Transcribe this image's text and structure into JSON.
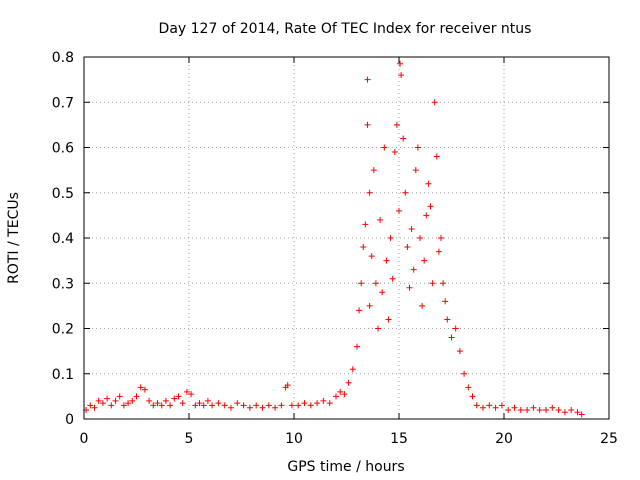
{
  "chart_data": {
    "type": "scatter",
    "title": "Day 127 of 2014, Rate Of TEC Index for receiver ntus",
    "xlabel": "GPS time / hours",
    "ylabel": "ROTI / TECUs",
    "xlim": [
      0,
      25
    ],
    "ylim": [
      0,
      0.8
    ],
    "xticks": [
      0,
      5,
      10,
      15,
      20,
      25
    ],
    "yticks": [
      0,
      0.1,
      0.2,
      0.3,
      0.4,
      0.5,
      0.6,
      0.7,
      0.8
    ],
    "xtick_labels": [
      "0",
      "5",
      "10",
      "15",
      "20",
      "25"
    ],
    "ytick_labels": [
      "0",
      "0.1",
      "0.2",
      "0.3",
      "0.4",
      "0.5",
      "0.6",
      "0.7",
      "0.8"
    ],
    "grid": true,
    "marker": "+",
    "color": "#ff0000",
    "series": [
      {
        "name": "ROTI",
        "points": [
          [
            0.1,
            0.02
          ],
          [
            0.3,
            0.03
          ],
          [
            0.5,
            0.025
          ],
          [
            0.7,
            0.04
          ],
          [
            0.9,
            0.035
          ],
          [
            1.1,
            0.045
          ],
          [
            1.3,
            0.03
          ],
          [
            1.5,
            0.04
          ],
          [
            1.7,
            0.05
          ],
          [
            1.9,
            0.03
          ],
          [
            2.1,
            0.035
          ],
          [
            2.3,
            0.04
          ],
          [
            2.5,
            0.05
          ],
          [
            2.7,
            0.07
          ],
          [
            2.9,
            0.065
          ],
          [
            3.1,
            0.04
          ],
          [
            3.3,
            0.03
          ],
          [
            3.5,
            0.035
          ],
          [
            3.7,
            0.03
          ],
          [
            3.9,
            0.04
          ],
          [
            4.1,
            0.03
          ],
          [
            4.3,
            0.045
          ],
          [
            4.5,
            0.05
          ],
          [
            4.7,
            0.035
          ],
          [
            4.9,
            0.06
          ],
          [
            5.1,
            0.055
          ],
          [
            5.3,
            0.03
          ],
          [
            5.5,
            0.035
          ],
          [
            5.7,
            0.03
          ],
          [
            5.9,
            0.04
          ],
          [
            6.1,
            0.03
          ],
          [
            6.4,
            0.035
          ],
          [
            6.7,
            0.03
          ],
          [
            7.0,
            0.025
          ],
          [
            7.3,
            0.035
          ],
          [
            7.6,
            0.03
          ],
          [
            7.9,
            0.025
          ],
          [
            8.2,
            0.03
          ],
          [
            8.5,
            0.025
          ],
          [
            8.8,
            0.03
          ],
          [
            9.1,
            0.025
          ],
          [
            9.4,
            0.03
          ],
          [
            9.6,
            0.07
          ],
          [
            9.7,
            0.075
          ],
          [
            9.9,
            0.03
          ],
          [
            10.2,
            0.03
          ],
          [
            10.5,
            0.035
          ],
          [
            10.8,
            0.03
          ],
          [
            11.1,
            0.035
          ],
          [
            11.4,
            0.04
          ],
          [
            11.7,
            0.035
          ],
          [
            12.0,
            0.05
          ],
          [
            12.2,
            0.06
          ],
          [
            12.4,
            0.055
          ],
          [
            12.6,
            0.08
          ],
          [
            12.8,
            0.11
          ],
          [
            13.0,
            0.16
          ],
          [
            13.1,
            0.24
          ],
          [
            13.2,
            0.3
          ],
          [
            13.3,
            0.38
          ],
          [
            13.4,
            0.43
          ],
          [
            13.5,
            0.65
          ],
          [
            13.5,
            0.75
          ],
          [
            13.6,
            0.5
          ],
          [
            13.6,
            0.25
          ],
          [
            13.7,
            0.36
          ],
          [
            13.8,
            0.55
          ],
          [
            13.9,
            0.3
          ],
          [
            14.0,
            0.2
          ],
          [
            14.1,
            0.44
          ],
          [
            14.2,
            0.28
          ],
          [
            14.3,
            0.6
          ],
          [
            14.4,
            0.35
          ],
          [
            14.5,
            0.22
          ],
          [
            14.6,
            0.4
          ],
          [
            14.7,
            0.31
          ],
          [
            14.8,
            0.59
          ],
          [
            14.9,
            0.65
          ],
          [
            15.0,
            0.46
          ],
          [
            15.05,
            0.785
          ],
          [
            15.1,
            0.76
          ],
          [
            15.2,
            0.62
          ],
          [
            15.3,
            0.5
          ],
          [
            15.4,
            0.38
          ],
          [
            15.5,
            0.29
          ],
          [
            15.6,
            0.42
          ],
          [
            15.7,
            0.33
          ],
          [
            15.8,
            0.55
          ],
          [
            15.9,
            0.6
          ],
          [
            16.0,
            0.4
          ],
          [
            16.1,
            0.25
          ],
          [
            16.2,
            0.35
          ],
          [
            16.3,
            0.45
          ],
          [
            16.4,
            0.52
          ],
          [
            16.5,
            0.47
          ],
          [
            16.6,
            0.3
          ],
          [
            16.7,
            0.7
          ],
          [
            16.8,
            0.58
          ],
          [
            16.9,
            0.37
          ],
          [
            17.0,
            0.4
          ],
          [
            17.1,
            0.3
          ],
          [
            17.2,
            0.26
          ],
          [
            17.3,
            0.22
          ],
          [
            17.5,
            0.18
          ],
          [
            17.7,
            0.2
          ],
          [
            17.9,
            0.15
          ],
          [
            18.1,
            0.1
          ],
          [
            18.3,
            0.07
          ],
          [
            18.5,
            0.05
          ],
          [
            18.7,
            0.03
          ],
          [
            19.0,
            0.025
          ],
          [
            19.3,
            0.03
          ],
          [
            19.6,
            0.025
          ],
          [
            19.9,
            0.03
          ],
          [
            20.2,
            0.02
          ],
          [
            20.5,
            0.025
          ],
          [
            20.8,
            0.02
          ],
          [
            21.1,
            0.02
          ],
          [
            21.4,
            0.025
          ],
          [
            21.7,
            0.02
          ],
          [
            22.0,
            0.02
          ],
          [
            22.3,
            0.025
          ],
          [
            22.6,
            0.02
          ],
          [
            22.9,
            0.015
          ],
          [
            23.2,
            0.02
          ],
          [
            23.5,
            0.015
          ],
          [
            23.7,
            0.01
          ]
        ]
      }
    ]
  }
}
